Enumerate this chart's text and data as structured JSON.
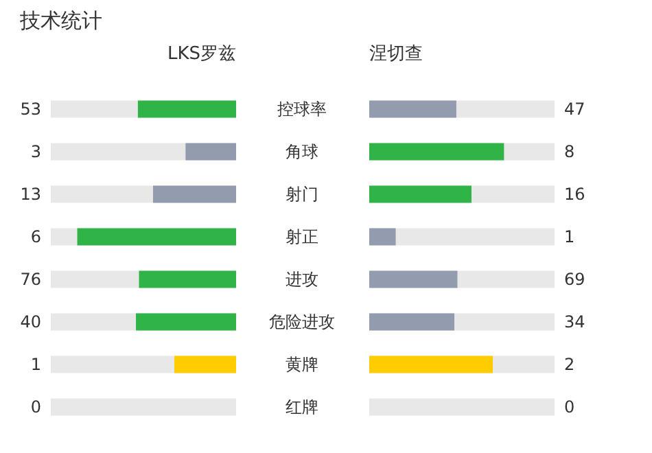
{
  "chart_data": {
    "type": "other",
    "title": "技术统计",
    "data_labels": true,
    "categories": [
      "控球率",
      "角球",
      "射门",
      "射正",
      "进攻",
      "危险进攻",
      "黄牌",
      "红牌"
    ],
    "series": [
      {
        "name": "LKS罗兹",
        "values": [
          53,
          3,
          13,
          6,
          76,
          40,
          1,
          0
        ],
        "colors": [
          "#31b447",
          "#939cae",
          "#939cae",
          "#31b447",
          "#31b447",
          "#31b447",
          "#ffcc00",
          null
        ]
      },
      {
        "name": "涅切查",
        "values": [
          47,
          8,
          16,
          1,
          69,
          34,
          2,
          0
        ],
        "colors": [
          "#939cae",
          "#31b447",
          "#31b447",
          "#939cae",
          "#939cae",
          "#939cae",
          "#ffcc00",
          null
        ]
      }
    ]
  }
}
